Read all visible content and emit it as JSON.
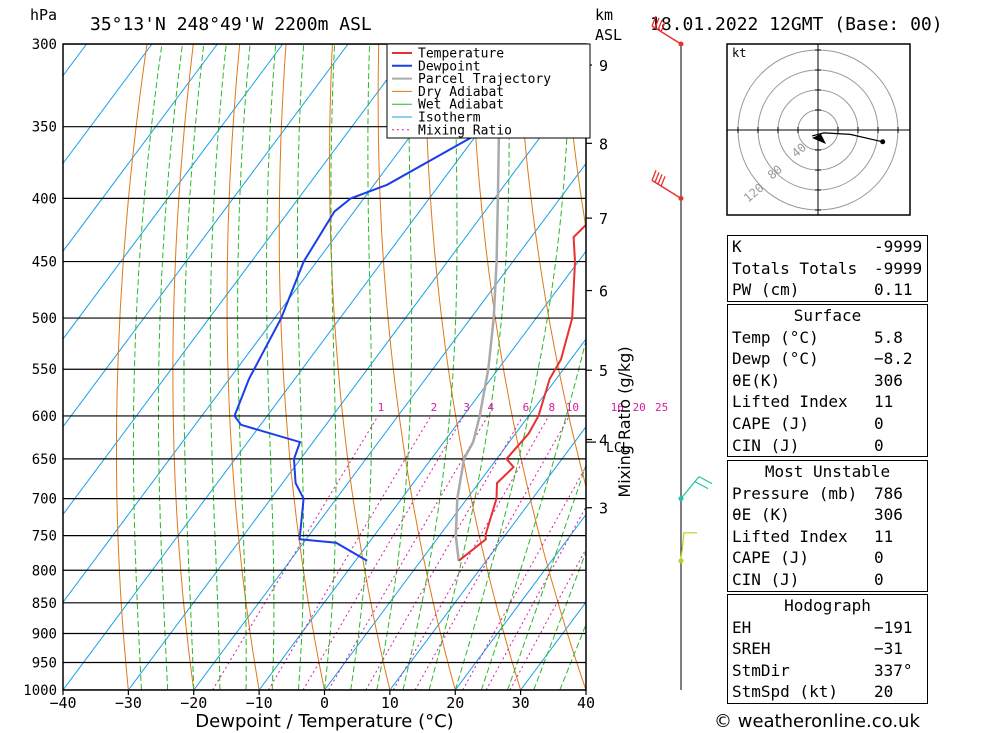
{
  "header": {
    "location": "35°13'N 248°49'W 2200m ASL",
    "datetime": "18.01.2022 12GMT (Base: 00)",
    "hpa_unit": "hPa",
    "km_unit": "km",
    "asl_unit": "ASL",
    "kt_unit": "kt"
  },
  "chart_data": {
    "type": "skew-t",
    "xlabel": "Dewpoint / Temperature (°C)",
    "ylabel_right": "Mixing Ratio (g/kg)",
    "xlim": [
      -40,
      40
    ],
    "ylim_hpa": [
      1000,
      300
    ],
    "x_ticks": [
      -40,
      -30,
      -20,
      -10,
      0,
      10,
      20,
      30,
      40
    ],
    "x_tick_labels": [
      "−40",
      "−30",
      "−20",
      "−10",
      "0",
      "10",
      "20",
      "30",
      "40"
    ],
    "pressure_levels": [
      300,
      350,
      400,
      450,
      500,
      550,
      600,
      650,
      700,
      750,
      800,
      850,
      900,
      950,
      1000
    ],
    "km_ticks": [
      {
        "km": 3,
        "p": 712
      },
      {
        "km": 4,
        "p": 627
      },
      {
        "km": 5,
        "p": 551
      },
      {
        "km": 6,
        "p": 475
      },
      {
        "km": 7,
        "p": 415
      },
      {
        "km": 8,
        "p": 361
      },
      {
        "km": 9,
        "p": 312
      }
    ],
    "lcl": {
      "label": "LCL",
      "p": 630
    },
    "mixing_ratio_labels": [
      "1",
      "2",
      "3",
      "4",
      "6",
      "8",
      "10",
      "16",
      "20",
      "25"
    ],
    "mixing_ratio_values": [
      1,
      2,
      3,
      4,
      6,
      8,
      10,
      16,
      20,
      25
    ],
    "legend": [
      "Temperature",
      "Dewpoint",
      "Parcel Trajectory",
      "Dry Adiabat",
      "Wet Adiabat",
      "Isotherm",
      "Mixing Ratio"
    ],
    "legend_placement": "top-right",
    "series": [
      {
        "name": "Temperature",
        "color": "#e83030",
        "points": [
          [
            786,
            5.8
          ],
          [
            755,
            7.5
          ],
          [
            750,
            7.0
          ],
          [
            700,
            4.5
          ],
          [
            680,
            2.8
          ],
          [
            660,
            3.5
          ],
          [
            650,
            1.5
          ],
          [
            620,
            2.0
          ],
          [
            600,
            1.5
          ],
          [
            560,
            -1.0
          ],
          [
            540,
            -1.5
          ],
          [
            500,
            -4.5
          ],
          [
            450,
            -10.5
          ],
          [
            430,
            -13.5
          ],
          [
            410,
            -12.5
          ],
          [
            400,
            -12.0
          ],
          [
            350,
            -19.5
          ],
          [
            330,
            -24.0
          ],
          [
            310,
            -24.5
          ],
          [
            300,
            -26.0
          ]
        ]
      },
      {
        "name": "Dewpoint",
        "color": "#1a3ee8",
        "points": [
          [
            786,
            -8.2
          ],
          [
            760,
            -15.0
          ],
          [
            755,
            -21.0
          ],
          [
            700,
            -25.0
          ],
          [
            680,
            -28.0
          ],
          [
            660,
            -30.0
          ],
          [
            650,
            -31.0
          ],
          [
            630,
            -32.0
          ],
          [
            610,
            -43.0
          ],
          [
            600,
            -45.0
          ],
          [
            560,
            -47.0
          ],
          [
            500,
            -49.0
          ],
          [
            450,
            -52.0
          ],
          [
            410,
            -53.0
          ],
          [
            400,
            -52.0
          ],
          [
            390,
            -48.0
          ],
          [
            355,
            -40.0
          ],
          [
            335,
            -37.0
          ],
          [
            320,
            -31.0
          ],
          [
            313,
            -31.0
          ],
          [
            305,
            -34.0
          ],
          [
            300,
            -35.5
          ]
        ]
      },
      {
        "name": "Parcel Trajectory",
        "color": "#aaaaaa",
        "points": [
          [
            786,
            5.8
          ],
          [
            750,
            2.5
          ],
          [
            700,
            -1.5
          ],
          [
            650,
            -5.0
          ],
          [
            630,
            -5.5
          ],
          [
            600,
            -7.5
          ],
          [
            550,
            -11.5
          ],
          [
            500,
            -16.5
          ],
          [
            450,
            -22.5
          ],
          [
            400,
            -29.5
          ],
          [
            350,
            -37.5
          ],
          [
            300,
            -46.5
          ]
        ]
      }
    ],
    "wind_barbs": [
      {
        "p": 300,
        "color": "#e83030"
      },
      {
        "p": 400,
        "color": "#e83030"
      },
      {
        "p": 700,
        "color": "#1dc4a4"
      },
      {
        "p": 786,
        "color": "#b8d020"
      }
    ],
    "hodograph": {
      "unit": "kt",
      "ring_labels": [
        "40",
        "80",
        "120"
      ],
      "points": [
        [
          -2,
          -2
        ],
        [
          2,
          -1
        ],
        [
          11,
          -1.5
        ],
        [
          22,
          -4
        ]
      ]
    },
    "colors": {
      "temperature": "#e83030",
      "dewpoint": "#1a3ee8",
      "parcel": "#aaaaaa",
      "dry_adiabat": "#e07818",
      "wet_adiabat": "#2ab82a",
      "isotherm": "#1aa0e8",
      "mixing_ratio": "#d81aa0"
    }
  },
  "indices": {
    "k_label": "K",
    "k_value": "-9999",
    "tt_label": "Totals Totals",
    "tt_value": "-9999",
    "pw_label": "PW (cm)",
    "pw_value": "0.11"
  },
  "surface": {
    "title": "Surface",
    "temp_label": "Temp (°C)",
    "temp_value": "5.8",
    "dewp_label": "Dewp (°C)",
    "dewp_value": "−8.2",
    "theta_label": "θE(K)",
    "theta_value": "306",
    "li_label": "Lifted Index",
    "li_value": "11",
    "cape_label": "CAPE (J)",
    "cape_value": "0",
    "cin_label": "CIN (J)",
    "cin_value": "0"
  },
  "most_unstable": {
    "title": "Most Unstable",
    "pressure_label": "Pressure (mb)",
    "pressure_value": "786",
    "theta_label": "θE (K)",
    "theta_value": "306",
    "li_label": "Lifted Index",
    "li_value": "11",
    "cape_label": "CAPE (J)",
    "cape_value": "0",
    "cin_label": "CIN (J)",
    "cin_value": "0"
  },
  "hodo_table": {
    "title": "Hodograph",
    "eh_label": "EH",
    "eh_value": "−191",
    "sreh_label": "SREH",
    "sreh_value": "−31",
    "stmdir_label": "StmDir",
    "stmdir_value": "337°",
    "stmspd_label": "StmSpd (kt)",
    "stmspd_value": "20"
  },
  "footer": {
    "copyright": "© weatheronline.co.uk"
  }
}
